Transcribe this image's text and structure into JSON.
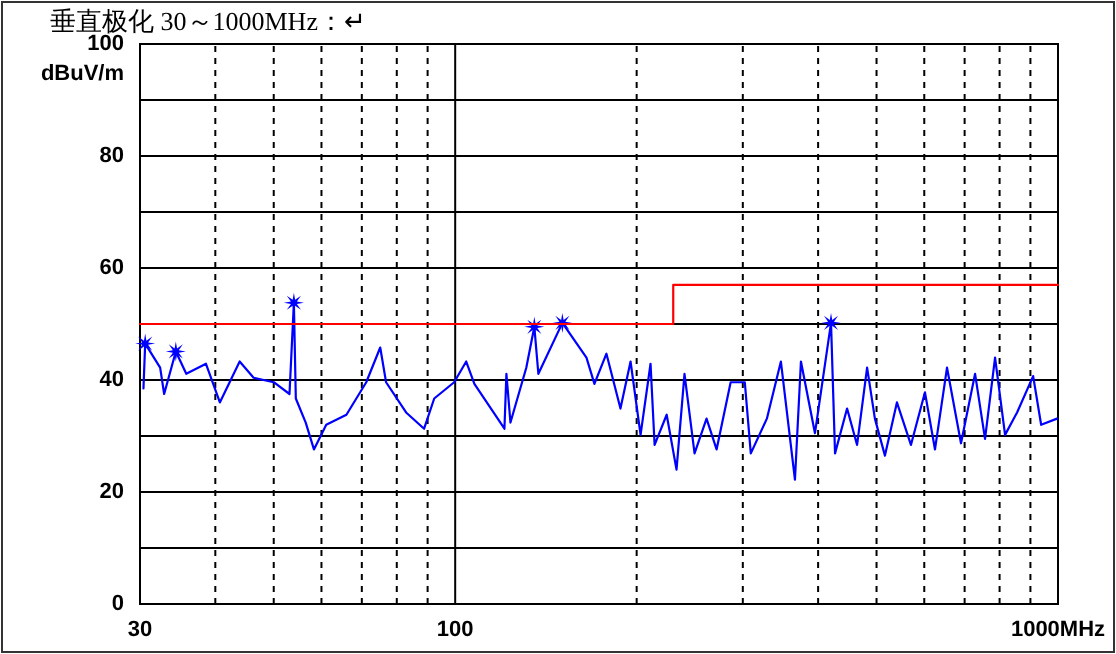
{
  "chart_data": {
    "type": "line",
    "title": "垂直极化 30～1000MHz：↵",
    "ylabel": "dBuV/m",
    "log": "x",
    "xlim": [
      30,
      1000
    ],
    "ylim": [
      0,
      100
    ],
    "xticks": [
      30,
      {
        "value": 40,
        "label": null
      },
      {
        "value": 50,
        "label": null
      },
      {
        "value": 60,
        "label": null
      },
      {
        "value": 70,
        "label": null
      },
      {
        "value": 80,
        "label": null
      },
      {
        "value": 90,
        "label": null
      },
      100,
      {
        "value": 200,
        "label": null
      },
      {
        "value": 300,
        "label": null
      },
      {
        "value": 400,
        "label": null
      },
      {
        "value": 500,
        "label": null
      },
      {
        "value": 600,
        "label": null
      },
      {
        "value": 700,
        "label": null
      },
      {
        "value": 800,
        "label": null
      },
      {
        "value": 900,
        "label": null
      },
      {
        "value": 1000,
        "label": "1000MHz"
      }
    ],
    "yticks": [
      0,
      {
        "value": 10,
        "label": null
      },
      20,
      {
        "value": 30,
        "label": null
      },
      40,
      {
        "value": 50,
        "label": null
      },
      60,
      {
        "value": 70,
        "label": null
      },
      80,
      {
        "value": 90,
        "label": null
      },
      100
    ],
    "grid": true,
    "series": [
      {
        "color": "#0000ff",
        "x": [
          30.4,
          30.6,
          32.4,
          32.9,
          34.4,
          35.8,
          38.6,
          40.7,
          43.9,
          46.3,
          50.0,
          53.1,
          54.0,
          54.4,
          56.5,
          58.3,
          61.1,
          66.0,
          71.2,
          75.1,
          76.8,
          82.9,
          88.8,
          92.3,
          99.6,
          104.3,
          107.6,
          120.7,
          121.6,
          123.5,
          131.2,
          135.3,
          137.4,
          150.6,
          165.1,
          170.2,
          178.2,
          188.0,
          195.4,
          203.0,
          210.9,
          214.2,
          224.3,
          232.9,
          240.1,
          249.5,
          261.2,
          271.4,
          286.4,
          302.3,
          309.3,
          328.9,
          347.0,
          366.1,
          374.6,
          395.2,
          420.2,
          426.7,
          446.8,
          464.2,
          482.3,
          496.9,
          516.3,
          540.5,
          570.2,
          601.6,
          625.1,
          654.5,
          690.4,
          728.5,
          756.8,
          786.3,
          816.9,
          855.3,
          909.4,
          937.6,
          996.3
        ],
        "values": [
          38.5,
          46.5,
          42.2,
          37.5,
          45.1,
          41.1,
          42.9,
          36.0,
          43.3,
          40.4,
          39.6,
          37.5,
          53.8,
          36.7,
          32.4,
          27.6,
          32.0,
          33.8,
          39.6,
          45.8,
          39.6,
          34.2,
          31.3,
          36.7,
          39.6,
          43.3,
          39.3,
          31.3,
          41.1,
          32.4,
          42.2,
          49.5,
          41.1,
          50.2,
          44.0,
          39.3,
          44.7,
          34.9,
          43.3,
          30.2,
          42.9,
          28.4,
          33.8,
          24.0,
          41.1,
          26.9,
          33.1,
          27.6,
          39.6,
          39.6,
          26.9,
          33.1,
          43.3,
          22.2,
          43.3,
          30.5,
          50.2,
          26.9,
          34.9,
          28.4,
          42.2,
          33.1,
          26.5,
          36.0,
          28.4,
          37.8,
          27.6,
          42.2,
          28.7,
          41.1,
          29.5,
          44.0,
          30.2,
          34.2,
          40.7,
          32.0,
          33.1
        ]
      },
      {
        "type": "scatter",
        "marker": "star",
        "color": "#0000ff",
        "x": [
          30.6,
          34.4,
          54.0,
          135.3,
          150.6,
          420.2
        ],
        "values": [
          46.5,
          45.1,
          53.8,
          49.5,
          50.2,
          50.2
        ]
      },
      {
        "type": "line",
        "color": "#ff0000",
        "x": [
          30,
          230,
          230,
          1000
        ],
        "values": [
          50,
          50,
          57,
          57
        ]
      }
    ]
  }
}
